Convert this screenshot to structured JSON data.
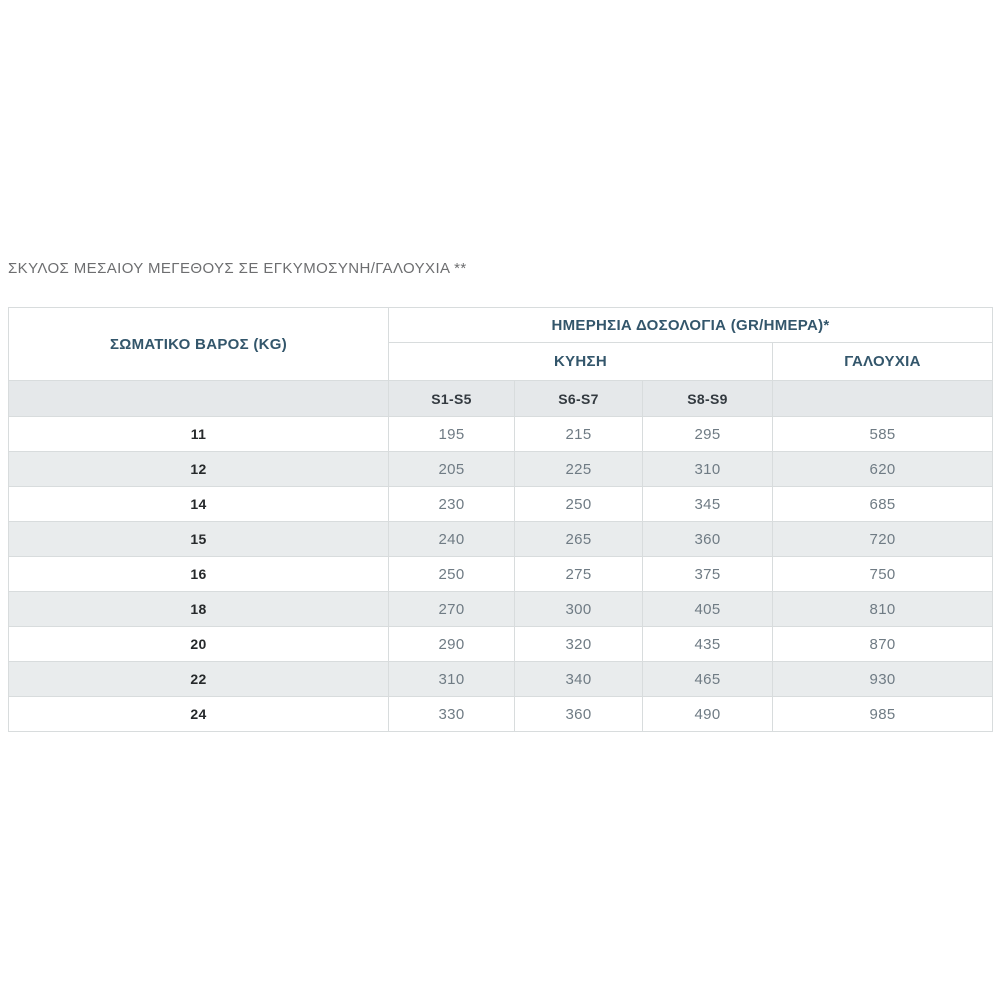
{
  "page_title": "ΣΚΥΛΟΣ ΜΕΣΑΙΟΥ ΜΕΓΕΘΟΥΣ ΣΕ ΕΓΚΥΜΟΣΥΝΗ/ΓΑΛΟΥΧΙΑ **",
  "chart_data": {
    "type": "table",
    "title": "ΣΚΥΛΟΣ ΜΕΣΑΙΟΥ ΜΕΓΕΘΟΥΣ ΣΕ ΕΓΚΥΜΟΣΥΝΗ/ΓΑΛΟΥΧΙΑ **",
    "header": {
      "weight": "ΣΩΜΑΤΙΚΟ ΒΑΡΟΣ (KG)",
      "daily_dose": "ΗΜΕΡΗΣΙΑ ΔΟΣΟΛΟΓΙΑ (GR/ΗΜΕΡΑ)*",
      "gestation": "ΚΥΗΣΗ",
      "lactation": "ΓΑΛΟΥΧΙΑ",
      "stages": [
        "S1-S5",
        "S6-S7",
        "S8-S9"
      ]
    },
    "rows": [
      {
        "weight_kg": "11",
        "s1_s5": "195",
        "s6_s7": "215",
        "s8_s9": "295",
        "lactation": "585"
      },
      {
        "weight_kg": "12",
        "s1_s5": "205",
        "s6_s7": "225",
        "s8_s9": "310",
        "lactation": "620"
      },
      {
        "weight_kg": "14",
        "s1_s5": "230",
        "s6_s7": "250",
        "s8_s9": "345",
        "lactation": "685"
      },
      {
        "weight_kg": "15",
        "s1_s5": "240",
        "s6_s7": "265",
        "s8_s9": "360",
        "lactation": "720"
      },
      {
        "weight_kg": "16",
        "s1_s5": "250",
        "s6_s7": "275",
        "s8_s9": "375",
        "lactation": "750"
      },
      {
        "weight_kg": "18",
        "s1_s5": "270",
        "s6_s7": "300",
        "s8_s9": "405",
        "lactation": "810"
      },
      {
        "weight_kg": "20",
        "s1_s5": "290",
        "s6_s7": "320",
        "s8_s9": "435",
        "lactation": "870"
      },
      {
        "weight_kg": "22",
        "s1_s5": "310",
        "s6_s7": "340",
        "s8_s9": "465",
        "lactation": "930"
      },
      {
        "weight_kg": "24",
        "s1_s5": "330",
        "s6_s7": "360",
        "s8_s9": "490",
        "lactation": "985"
      }
    ]
  },
  "colors": {
    "header_text": "#33566b",
    "stage_text": "#333a40",
    "body_text": "#6f7b84",
    "weight_text": "#26292b",
    "muted_title": "#6d6e70",
    "stripe_bg": "#e9eced",
    "stage_bg": "#e5e8ea",
    "border": "#d8dcdd",
    "outer_border": "#aab2b6"
  }
}
